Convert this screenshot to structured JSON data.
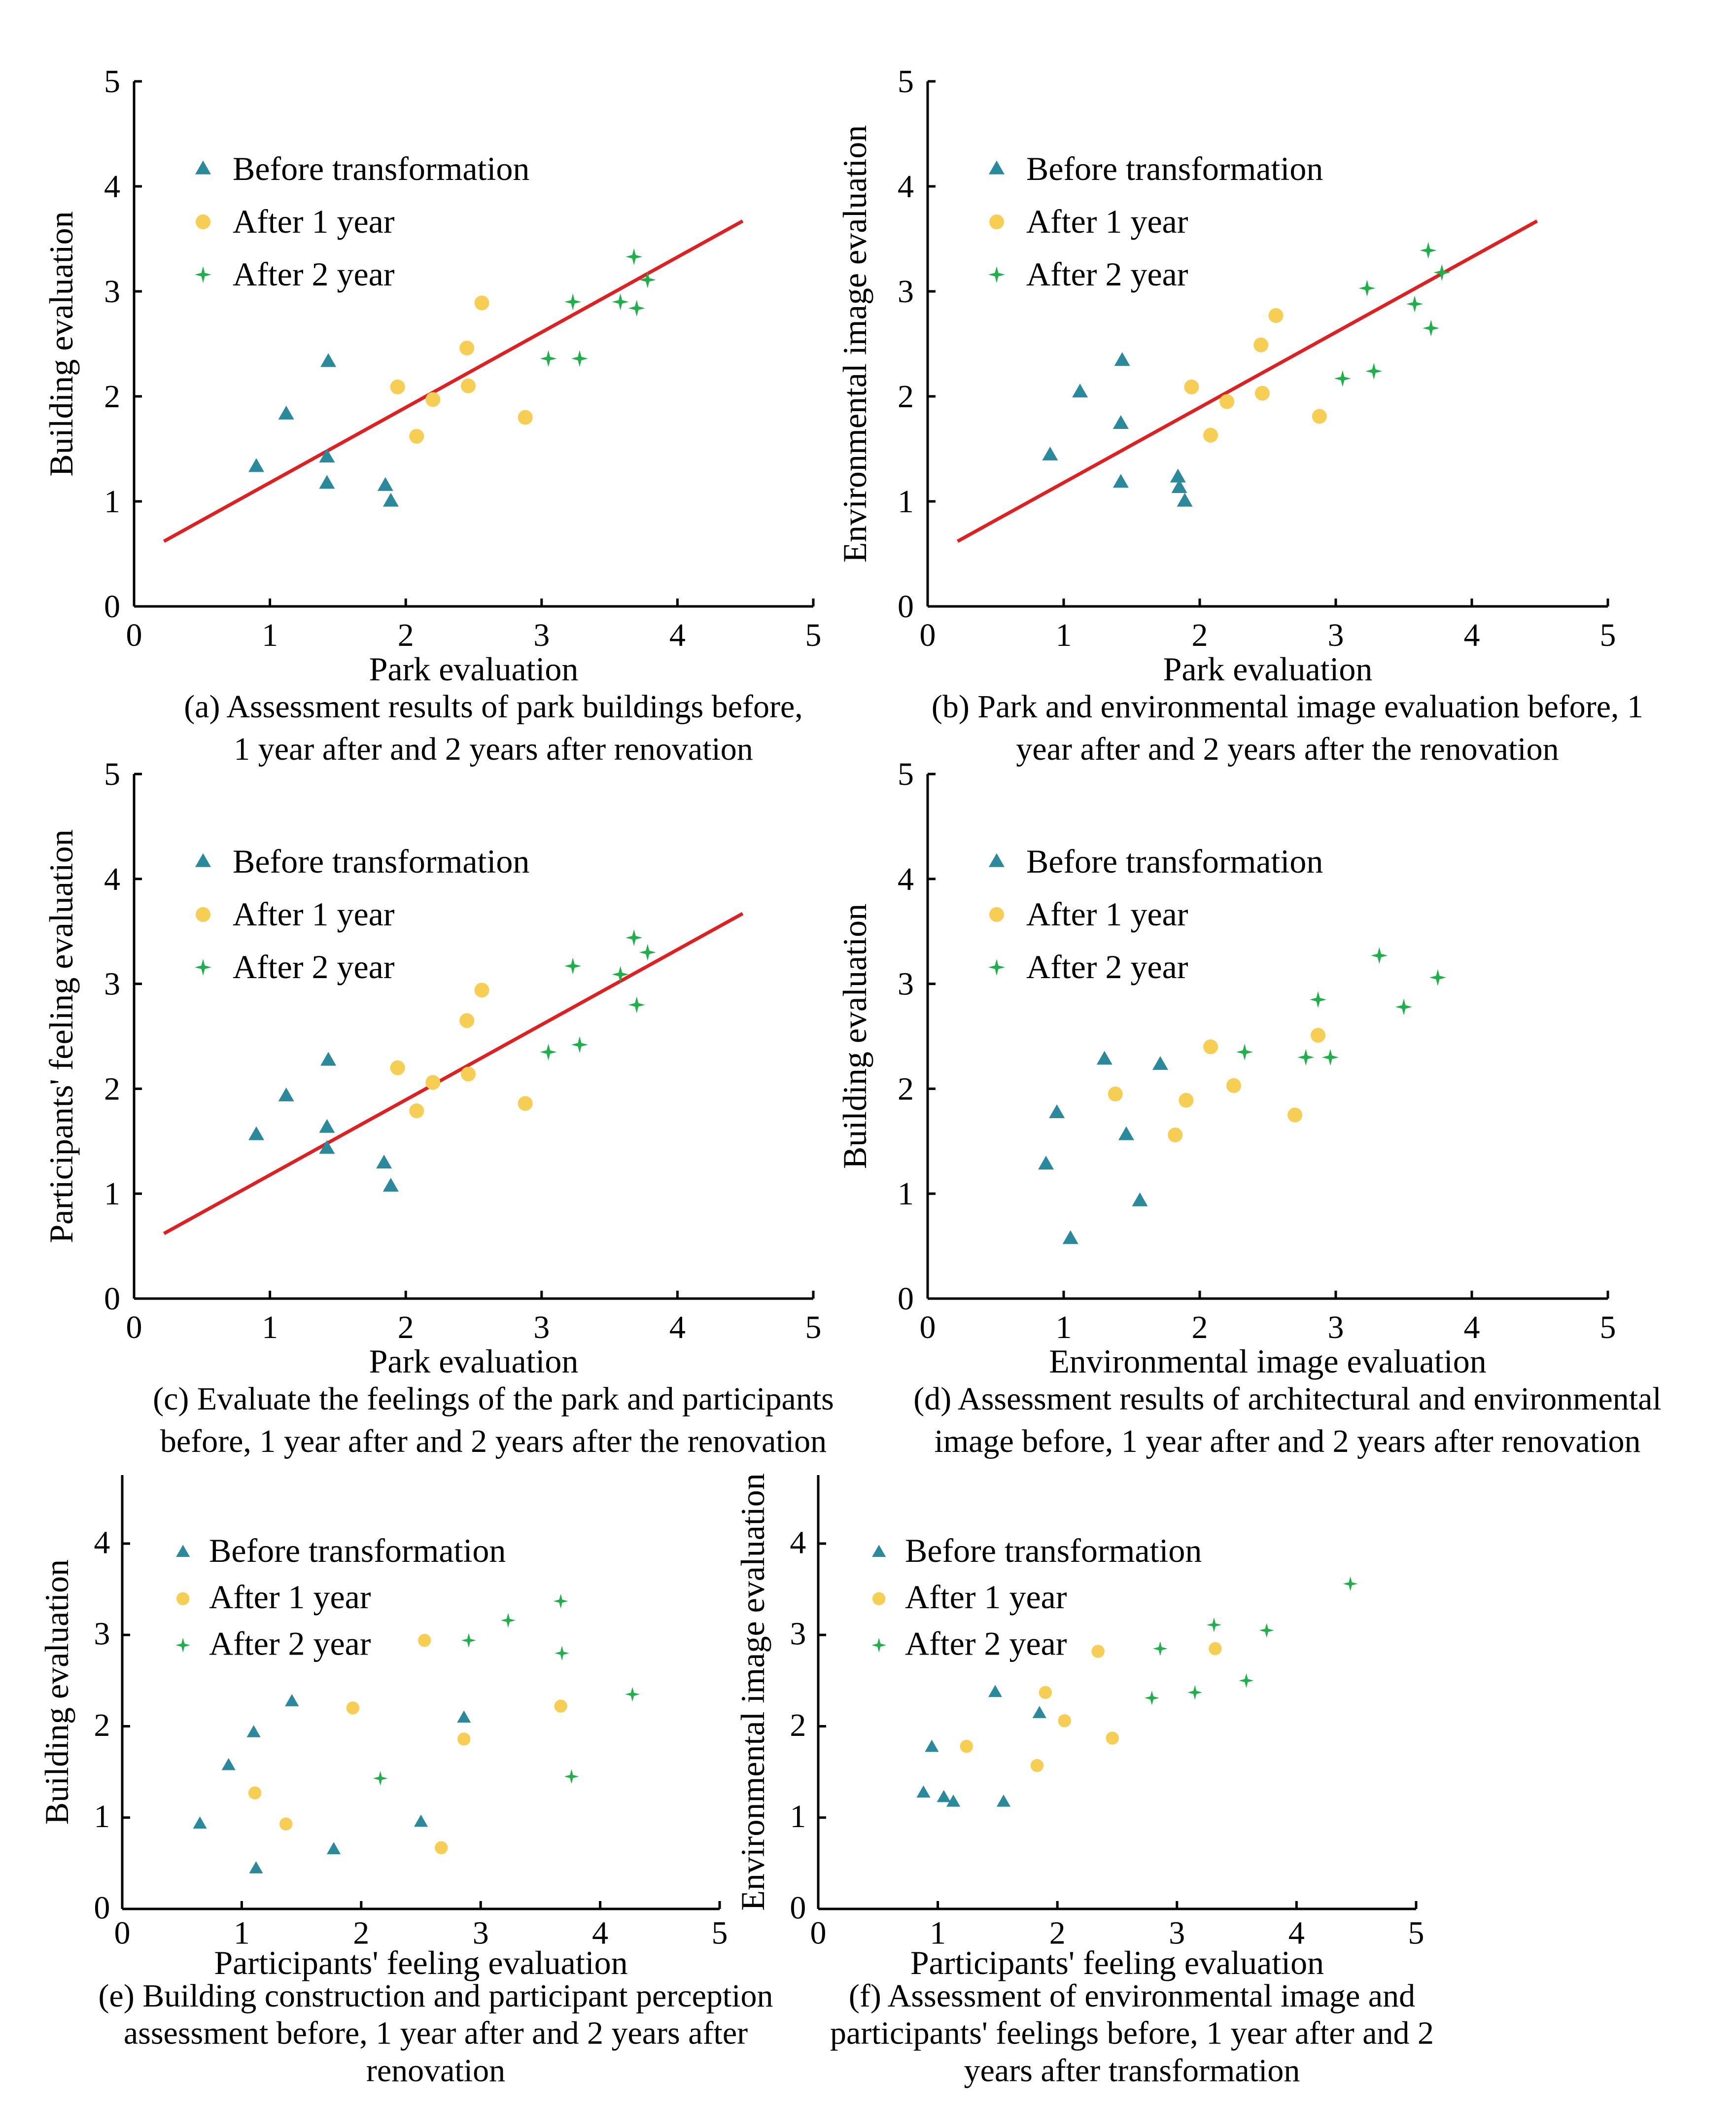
{
  "colors": {
    "before": "#2a8a9c",
    "after1": "#f7ce54",
    "after2": "#1fb04c",
    "fit": "#e02020"
  },
  "chart_data": [
    {
      "id": "a",
      "type": "scatter",
      "xlabel": "Park evaluation",
      "ylabel": "Building evaluation",
      "xlim": [
        0,
        5
      ],
      "ylim": [
        0,
        5
      ],
      "xticks": [
        "0",
        "1",
        "2",
        "3",
        "4",
        "5"
      ],
      "yticks": [
        "0",
        "1",
        "2",
        "3",
        "4",
        "5"
      ],
      "caption": [
        "(a) Assessment results of park buildings before,",
        "1 year after and 2 years after renovation"
      ],
      "legend": [
        "Before transformation",
        "After 1 year",
        "After 2 year"
      ],
      "series": [
        {
          "name": "Before transformation",
          "points": [
            [
              0.9,
              1.33
            ],
            [
              1.12,
              1.83
            ],
            [
              1.42,
              1.42
            ],
            [
              1.42,
              1.17
            ],
            [
              1.43,
              2.33
            ],
            [
              1.85,
              1.15
            ],
            [
              1.89,
              1.0
            ]
          ]
        },
        {
          "name": "After 1 year",
          "points": [
            [
              1.94,
              2.09
            ],
            [
              2.08,
              1.62
            ],
            [
              2.2,
              1.97
            ],
            [
              2.45,
              2.46
            ],
            [
              2.46,
              2.1
            ],
            [
              2.56,
              2.89
            ],
            [
              2.88,
              1.8
            ]
          ]
        },
        {
          "name": "After 2 year",
          "points": [
            [
              3.05,
              2.36
            ],
            [
              3.23,
              2.9
            ],
            [
              3.28,
              2.36
            ],
            [
              3.58,
              2.9
            ],
            [
              3.68,
              3.33
            ],
            [
              3.7,
              2.84
            ],
            [
              3.78,
              3.11
            ]
          ]
        }
      ],
      "fit": [
        [
          0.22,
          0.62
        ],
        [
          4.48,
          3.67
        ]
      ]
    },
    {
      "id": "b",
      "type": "scatter",
      "xlabel": "Park evaluation",
      "ylabel": "Environmental image evaluation",
      "xlim": [
        0,
        5
      ],
      "ylim": [
        0,
        5
      ],
      "xticks": [
        "0",
        "1",
        "2",
        "3",
        "4",
        "5"
      ],
      "yticks": [
        "0",
        "1",
        "2",
        "3",
        "4",
        "5"
      ],
      "caption": [
        "(b) Park and environmental image evaluation before, 1",
        "year after and 2 years after the renovation"
      ],
      "legend": [
        "Before transformation",
        "After 1 year",
        "After 2 year"
      ],
      "series": [
        {
          "name": "Before transformation",
          "points": [
            [
              0.9,
              1.44
            ],
            [
              1.12,
              2.04
            ],
            [
              1.42,
              1.74
            ],
            [
              1.42,
              1.18
            ],
            [
              1.43,
              2.34
            ],
            [
              1.84,
              1.23
            ],
            [
              1.85,
              1.13
            ],
            [
              1.89,
              1.0
            ]
          ]
        },
        {
          "name": "After 1 year",
          "points": [
            [
              1.94,
              2.09
            ],
            [
              2.08,
              1.63
            ],
            [
              2.2,
              1.95
            ],
            [
              2.45,
              2.49
            ],
            [
              2.46,
              2.03
            ],
            [
              2.56,
              2.77
            ],
            [
              2.88,
              1.81
            ]
          ]
        },
        {
          "name": "After 2 year",
          "points": [
            [
              3.05,
              2.17
            ],
            [
              3.23,
              3.03
            ],
            [
              3.28,
              2.24
            ],
            [
              3.58,
              2.88
            ],
            [
              3.68,
              3.39
            ],
            [
              3.7,
              2.65
            ],
            [
              3.78,
              3.18
            ]
          ]
        }
      ],
      "fit": [
        [
          0.22,
          0.62
        ],
        [
          4.48,
          3.67
        ]
      ]
    },
    {
      "id": "c",
      "type": "scatter",
      "xlabel": "Park evaluation",
      "ylabel": "Participants' feeling evaluation",
      "xlim": [
        0,
        5
      ],
      "ylim": [
        0,
        5
      ],
      "xticks": [
        "0",
        "1",
        "2",
        "3",
        "4",
        "5"
      ],
      "yticks": [
        "0",
        "1",
        "2",
        "3",
        "4",
        "5"
      ],
      "caption": [
        "(c) Evaluate the feelings of the park and participants",
        "before, 1 year after and 2 years after the renovation"
      ],
      "legend": [
        "Before transformation",
        "After 1 year",
        "After 2 year"
      ],
      "series": [
        {
          "name": "Before transformation",
          "points": [
            [
              0.9,
              1.56
            ],
            [
              1.12,
              1.93
            ],
            [
              1.42,
              1.63
            ],
            [
              1.42,
              1.43
            ],
            [
              1.43,
              2.27
            ],
            [
              1.84,
              1.29
            ],
            [
              1.89,
              1.07
            ]
          ]
        },
        {
          "name": "After 1 year",
          "points": [
            [
              1.94,
              2.2
            ],
            [
              2.08,
              1.79
            ],
            [
              2.2,
              2.06
            ],
            [
              2.45,
              2.65
            ],
            [
              2.46,
              2.14
            ],
            [
              2.56,
              2.94
            ],
            [
              2.88,
              1.86
            ]
          ]
        },
        {
          "name": "After 2 year",
          "points": [
            [
              3.05,
              2.35
            ],
            [
              3.23,
              3.17
            ],
            [
              3.28,
              2.42
            ],
            [
              3.58,
              3.09
            ],
            [
              3.68,
              3.44
            ],
            [
              3.7,
              2.8
            ],
            [
              3.78,
              3.3
            ]
          ]
        }
      ],
      "fit": [
        [
          0.22,
          0.62
        ],
        [
          4.48,
          3.67
        ]
      ]
    },
    {
      "id": "d",
      "type": "scatter",
      "xlabel": "Environmental image evaluation",
      "ylabel": "Building evaluation",
      "xlim": [
        0,
        5
      ],
      "ylim": [
        0,
        5
      ],
      "xticks": [
        "0",
        "1",
        "2",
        "3",
        "4",
        "5"
      ],
      "yticks": [
        "0",
        "1",
        "2",
        "3",
        "4",
        "5"
      ],
      "caption": [
        "(d) Assessment results of architectural and environmental",
        "image before, 1 year after and 2 years after renovation"
      ],
      "legend": [
        "Before transformation",
        "After 1 year",
        "After 2 year"
      ],
      "series": [
        {
          "name": "Before transformation",
          "points": [
            [
              0.87,
              1.28
            ],
            [
              0.95,
              1.77
            ],
            [
              1.05,
              0.57
            ],
            [
              1.3,
              2.28
            ],
            [
              1.46,
              1.56
            ],
            [
              1.56,
              0.93
            ],
            [
              1.71,
              2.23
            ]
          ]
        },
        {
          "name": "After 1 year",
          "points": [
            [
              1.38,
              1.95
            ],
            [
              1.82,
              1.56
            ],
            [
              1.9,
              1.89
            ],
            [
              2.08,
              2.4
            ],
            [
              2.25,
              2.03
            ],
            [
              2.7,
              1.75
            ],
            [
              2.87,
              2.51
            ]
          ]
        },
        {
          "name": "After 2 year",
          "points": [
            [
              2.33,
              2.35
            ],
            [
              2.78,
              2.3
            ],
            [
              2.87,
              2.85
            ],
            [
              2.96,
              2.3
            ],
            [
              3.32,
              3.27
            ],
            [
              3.5,
              2.78
            ],
            [
              3.75,
              3.06
            ]
          ]
        }
      ],
      "fit": null
    },
    {
      "id": "e",
      "type": "scatter",
      "xlabel": "Participants' feeling evaluation",
      "ylabel": "Building evaluation",
      "xlim": [
        0,
        5
      ],
      "ylim": [
        0,
        4.75
      ],
      "xticks": [
        "0",
        "1",
        "2",
        "3",
        "4",
        "5"
      ],
      "yticks": [
        "0",
        "1",
        "2",
        "3",
        "4"
      ],
      "caption": [
        "(e) Building construction and participant perception",
        "assessment before, 1 year after and 2 years after",
        "renovation"
      ],
      "legend": [
        "Before transformation",
        "After 1 year",
        "After 2 year"
      ],
      "series": [
        {
          "name": "Before transformation",
          "points": [
            [
              0.65,
              0.93
            ],
            [
              0.89,
              1.57
            ],
            [
              1.1,
              1.93
            ],
            [
              1.12,
              0.44
            ],
            [
              1.42,
              2.27
            ],
            [
              1.77,
              0.65
            ],
            [
              2.5,
              0.95
            ],
            [
              2.86,
              2.09
            ]
          ]
        },
        {
          "name": "After 1 year",
          "points": [
            [
              1.11,
              1.27
            ],
            [
              1.37,
              0.93
            ],
            [
              1.93,
              2.2
            ],
            [
              2.53,
              2.94
            ],
            [
              2.67,
              0.67
            ],
            [
              2.86,
              1.86
            ],
            [
              3.67,
              2.22
            ]
          ]
        },
        {
          "name": "After 2 year",
          "points": [
            [
              2.16,
              1.43
            ],
            [
              2.9,
              2.94
            ],
            [
              3.23,
              3.16
            ],
            [
              3.67,
              3.37
            ],
            [
              3.68,
              2.8
            ],
            [
              3.76,
              1.45
            ],
            [
              4.27,
              2.35
            ]
          ]
        }
      ],
      "fit": null
    },
    {
      "id": "f",
      "type": "scatter",
      "xlabel": "Participants' feeling evaluation",
      "ylabel": "Environmental image evaluation",
      "xlim": [
        0,
        5
      ],
      "ylim": [
        0,
        4.75
      ],
      "xticks": [
        "0",
        "1",
        "2",
        "3",
        "4",
        "5"
      ],
      "yticks": [
        "0",
        "1",
        "2",
        "3",
        "4"
      ],
      "caption": [
        "(f) Assessment of environmental image and",
        "participants' feelings before, 1 year after and 2",
        "years after transformation"
      ],
      "legend": [
        "Before transformation",
        "After 1 year",
        "After 2 year"
      ],
      "series": [
        {
          "name": "Before transformation",
          "points": [
            [
              0.88,
              1.27
            ],
            [
              0.95,
              1.77
            ],
            [
              1.05,
              1.22
            ],
            [
              1.13,
              1.17
            ],
            [
              1.48,
              2.37
            ],
            [
              1.55,
              1.17
            ],
            [
              1.85,
              2.14
            ]
          ]
        },
        {
          "name": "After 1 year",
          "points": [
            [
              1.24,
              1.78
            ],
            [
              1.83,
              1.57
            ],
            [
              1.9,
              2.37
            ],
            [
              2.06,
              2.06
            ],
            [
              2.34,
              2.82
            ],
            [
              2.46,
              1.87
            ],
            [
              3.32,
              2.85
            ]
          ]
        },
        {
          "name": "After 2 year",
          "points": [
            [
              2.79,
              2.31
            ],
            [
              2.86,
              2.85
            ],
            [
              3.15,
              2.37
            ],
            [
              3.31,
              3.11
            ],
            [
              3.58,
              2.5
            ],
            [
              3.75,
              3.05
            ],
            [
              4.45,
              3.56
            ]
          ]
        }
      ],
      "fit": null
    }
  ]
}
